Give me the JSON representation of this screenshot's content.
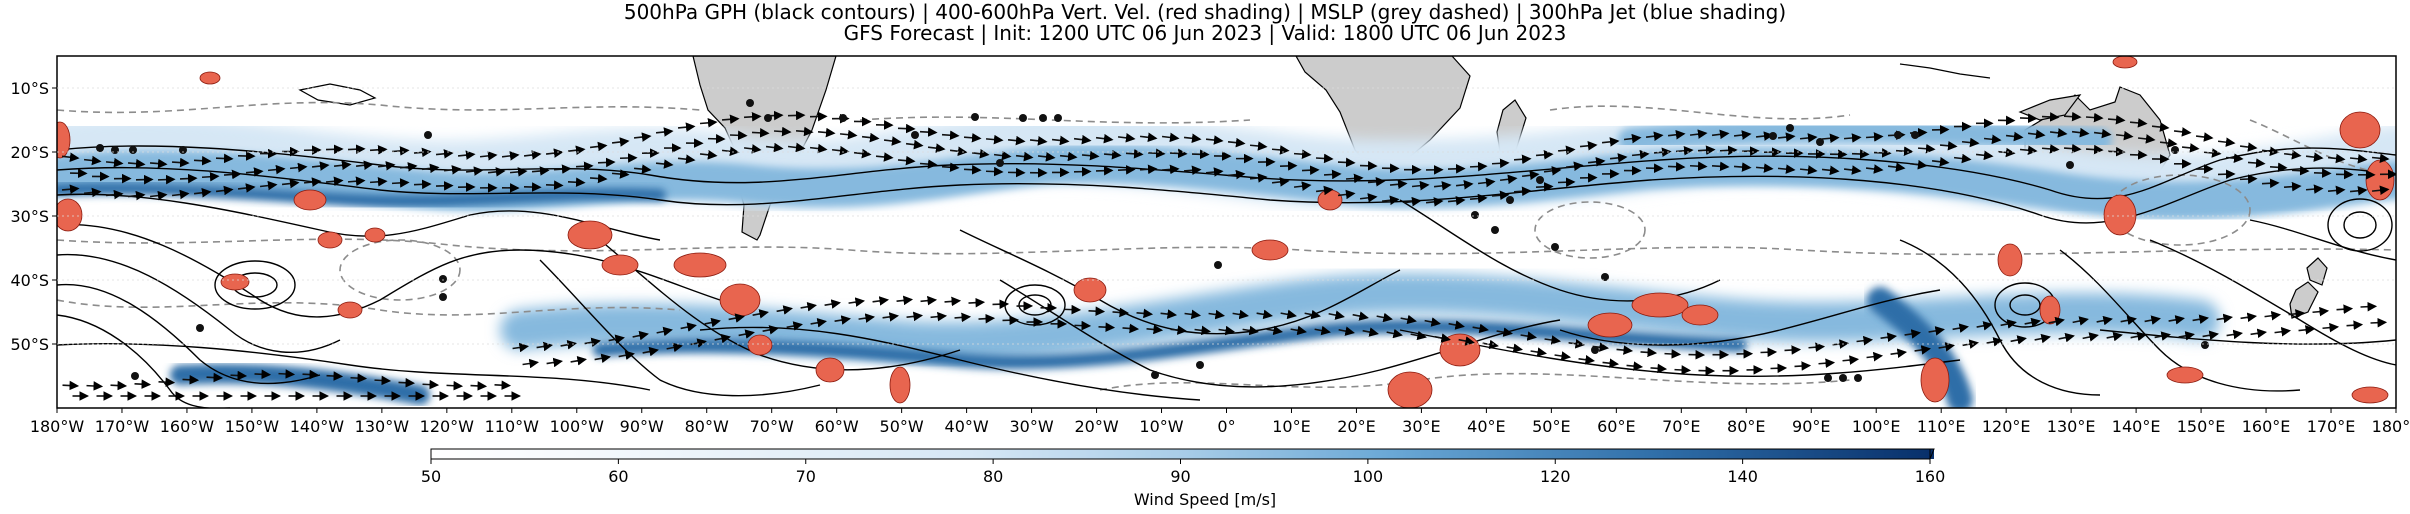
{
  "title": {
    "line1": "500hPa GPH (black contours) | 400-600hPa Vert. Vel. (red shading) | MSLP (grey dashed) | 300hPa Jet (blue shading)",
    "line2": "GFS Forecast | Init: 1200 UTC 06 Jun 2023 | Valid: 1800 UTC 06 Jun 2023"
  },
  "map": {
    "lat_range": [
      -60,
      -5
    ],
    "lon_range": [
      -180,
      180
    ],
    "lat_ticks": [
      "10°S",
      "20°S",
      "30°S",
      "40°S",
      "50°S"
    ],
    "lon_ticks": [
      "180°W",
      "170°W",
      "160°W",
      "150°W",
      "140°W",
      "130°W",
      "120°W",
      "110°W",
      "100°W",
      "90°W",
      "80°W",
      "70°W",
      "60°W",
      "50°W",
      "40°W",
      "30°W",
      "20°W",
      "10°W",
      "0°",
      "10°E",
      "20°E",
      "30°E",
      "40°E",
      "50°E",
      "60°E",
      "70°E",
      "80°E",
      "90°E",
      "100°E",
      "110°E",
      "120°E",
      "130°E",
      "140°E",
      "150°E",
      "160°E",
      "170°E",
      "180°E"
    ],
    "gridlines": true,
    "colors": {
      "land": "#cccccc",
      "coast": "#000000",
      "gph_contour": "#000000",
      "mslp_contour": "#8c8c8c",
      "vert_vel": "#e8654f",
      "jet_light": "#d6e7f5",
      "jet_mid": "#86b9de",
      "jet_dark": "#2f6ea8"
    }
  },
  "colorbar": {
    "label": "Wind Speed [m/s]",
    "ticks": [
      "50",
      "60",
      "70",
      "80",
      "90",
      "100",
      "120",
      "140",
      "160"
    ],
    "extend": "max"
  }
}
